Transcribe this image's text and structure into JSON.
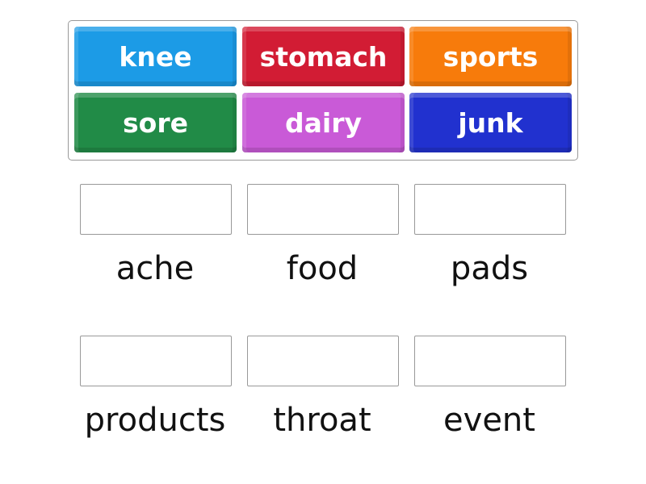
{
  "tiles": [
    {
      "text": "knee",
      "color": "#1c9be6"
    },
    {
      "text": "stomach",
      "color": "#d21c34"
    },
    {
      "text": "sports",
      "color": "#f77b0b"
    },
    {
      "text": "sore",
      "color": "#218b47"
    },
    {
      "text": "dairy",
      "color": "#c95ad7"
    },
    {
      "text": "junk",
      "color": "#2131cf"
    }
  ],
  "targets": [
    {
      "label": "ache"
    },
    {
      "label": "food"
    },
    {
      "label": "pads"
    },
    {
      "label": "products"
    },
    {
      "label": "throat"
    },
    {
      "label": "event"
    }
  ]
}
